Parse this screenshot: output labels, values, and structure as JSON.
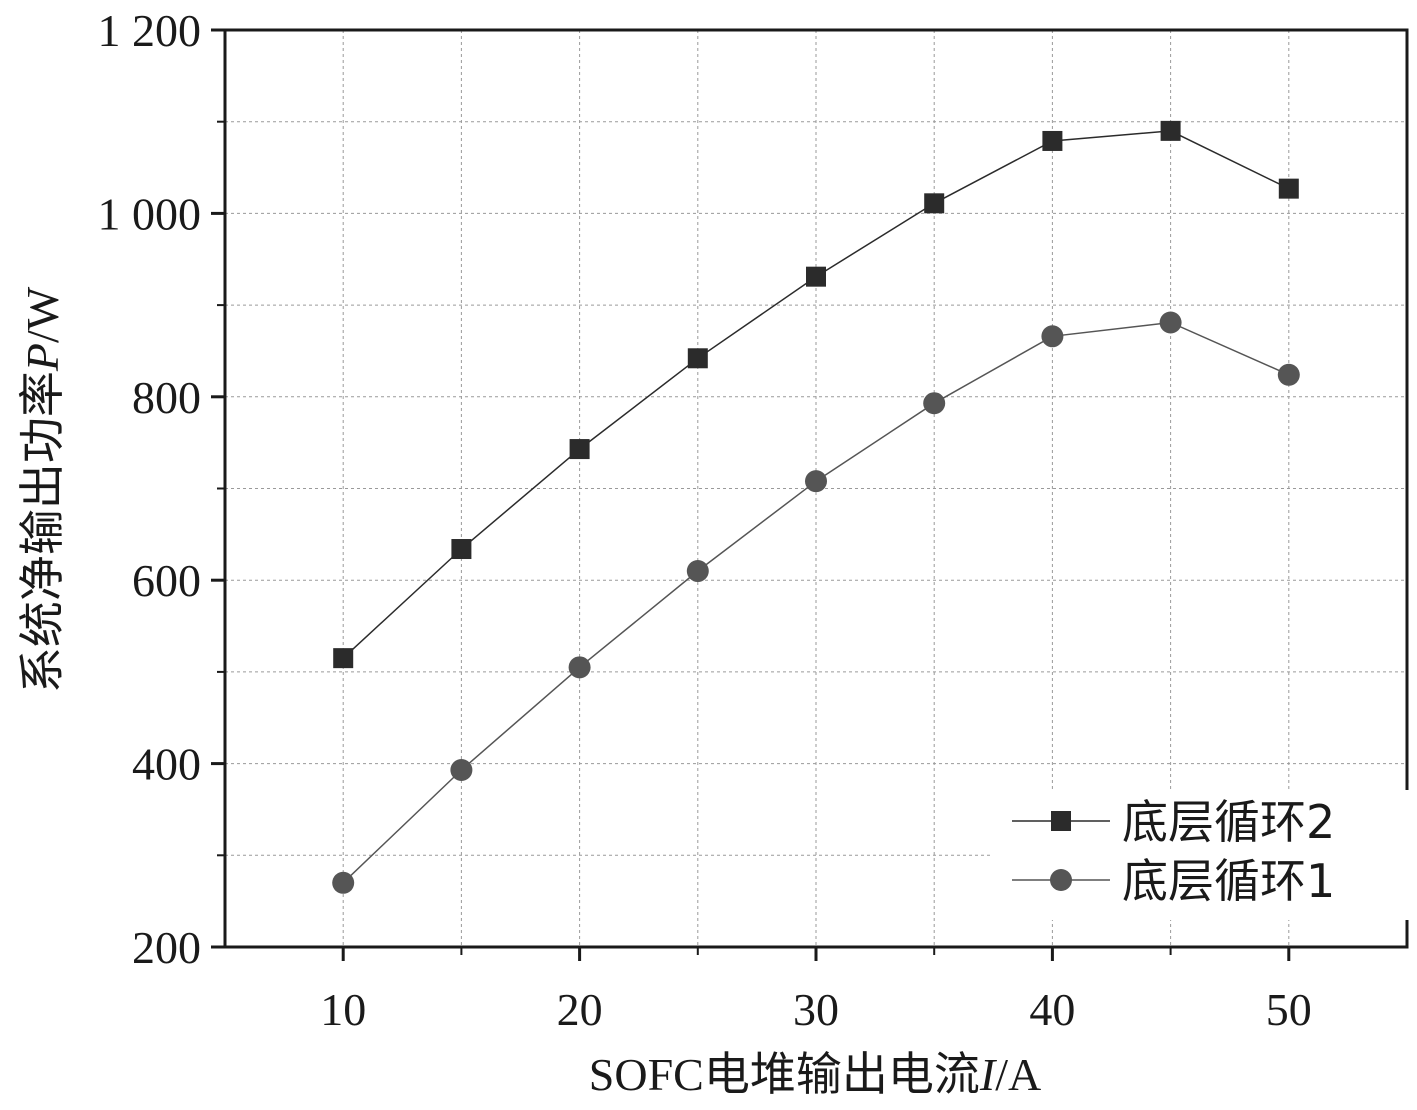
{
  "chart_data": {
    "type": "line",
    "xlabel_prefix": "SOFC电堆输出电流",
    "xlabel_var": "I",
    "xlabel_unit": "/A",
    "ylabel_prefix": "系统净输出功率",
    "ylabel_var": "P",
    "ylabel_unit": "/W",
    "xlim": [
      5,
      55
    ],
    "ylim": [
      200,
      1200
    ],
    "x_ticks": [
      10,
      20,
      30,
      40,
      50
    ],
    "x_tick_labels": [
      "10",
      "20",
      "30",
      "40",
      "50"
    ],
    "y_ticks": [
      200,
      400,
      600,
      800,
      1000,
      1200
    ],
    "y_tick_labels": [
      "200",
      "400",
      "600",
      "800",
      "1 000",
      "1 200"
    ],
    "x_minor_ticks": [
      15,
      25,
      35,
      45
    ],
    "y_minor_ticks": [
      300,
      500,
      700,
      900,
      1100
    ],
    "grid": true,
    "legend_position": "bottom-right",
    "x": [
      10,
      15,
      20,
      25,
      30,
      35,
      40,
      45,
      50
    ],
    "series": [
      {
        "name": "底层循环2",
        "marker": "square",
        "color": "#2b2b2b",
        "values": [
          515,
          634,
          743,
          842,
          931,
          1011,
          1079,
          1090,
          1027
        ]
      },
      {
        "name": "底层循环1",
        "marker": "circle",
        "color": "#555555",
        "values": [
          270,
          393,
          505,
          610,
          708,
          793,
          866,
          881,
          824
        ]
      }
    ]
  }
}
